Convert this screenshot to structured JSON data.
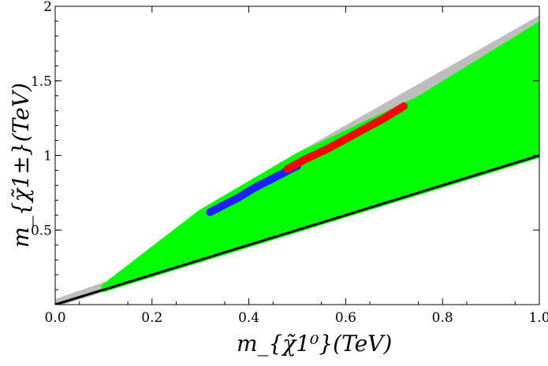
{
  "chart_data": {
    "type": "scatter",
    "title": "",
    "xlabel": "m_{χ̃1⁰}(TeV)",
    "ylabel": "m_{χ̃1±}(TeV)",
    "xlim": [
      0.0,
      1.0
    ],
    "ylim": [
      0.0,
      2.0
    ],
    "x_ticks": [
      "0.0",
      "0.2",
      "0.4",
      "0.6",
      "0.8",
      "1.0"
    ],
    "y_ticks": [
      "0.5",
      "1",
      "1.5",
      "2"
    ],
    "grid": false,
    "legend": "none",
    "colors": {
      "gray": "#bdbdbd",
      "green": "#00ff00",
      "blue": "#1f1fff",
      "red": "#ff0000",
      "line": "#000000"
    },
    "series": [
      {
        "color": "gray",
        "region": {
          "lower_edge": [
            [
              0.0,
              0.0
            ],
            [
              0.3,
              0.3
            ],
            [
              1.0,
              1.0
            ]
          ],
          "upper_edge": [
            [
              0.0,
              0.02
            ],
            [
              0.25,
              0.3
            ],
            [
              0.3,
              0.62
            ],
            [
              0.5,
              1.0
            ],
            [
              1.0,
              1.92
            ]
          ]
        }
      },
      {
        "color": "green",
        "region": {
          "lower_edge": [
            [
              0.1,
              0.1
            ],
            [
              1.0,
              1.0
            ]
          ],
          "upper_edge": [
            [
              0.1,
              0.12
            ],
            [
              0.3,
              0.62
            ],
            [
              0.5,
              1.0
            ],
            [
              0.75,
              1.38
            ],
            [
              1.0,
              1.88
            ]
          ]
        }
      },
      {
        "color": "blue",
        "points": [
          [
            0.32,
            0.62
          ],
          [
            0.35,
            0.67
          ],
          [
            0.38,
            0.72
          ],
          [
            0.41,
            0.78
          ],
          [
            0.44,
            0.83
          ],
          [
            0.47,
            0.88
          ],
          [
            0.5,
            0.93
          ]
        ]
      },
      {
        "color": "red",
        "points": [
          [
            0.48,
            0.91
          ],
          [
            0.52,
            0.98
          ],
          [
            0.56,
            1.04
          ],
          [
            0.6,
            1.11
          ],
          [
            0.64,
            1.18
          ],
          [
            0.68,
            1.25
          ],
          [
            0.72,
            1.33
          ]
        ]
      },
      {
        "color": "line",
        "line": [
          [
            0.0,
            0.0
          ],
          [
            1.0,
            1.0
          ]
        ]
      }
    ]
  }
}
